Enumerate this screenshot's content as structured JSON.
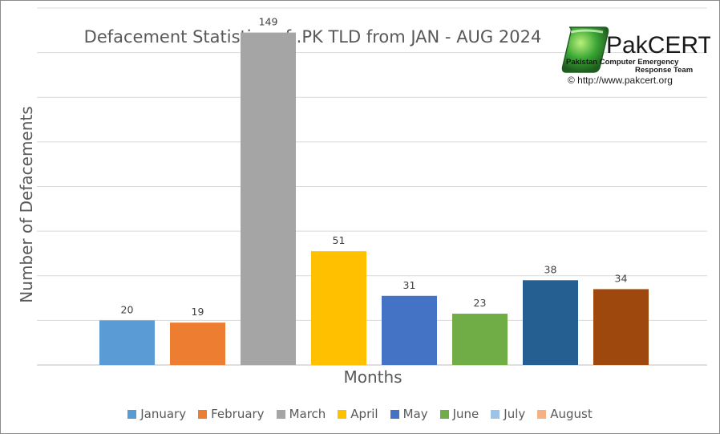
{
  "colors": {
    "grid": "#d9d9d9",
    "axis": "#bfbfbf",
    "text": "#595959",
    "label_text": "#404040",
    "logo_green": "#3aa535",
    "logo_dark": "#1e5c1e"
  },
  "logo": {
    "name": "PakCERT",
    "tagline_line1": "Pakistan Computer Emergency",
    "tagline_line2": "Response Team",
    "url": "© http://www.pakcert.org"
  },
  "chart_data": {
    "type": "bar",
    "title": "Defacement Statistics of .PK TLD from JAN - AUG 2024",
    "xlabel": "Months",
    "ylabel": "Number of Defacements",
    "ylim": [
      0,
      160
    ],
    "grid": true,
    "legend_position": "bottom",
    "categories": [
      "January",
      "February",
      "March",
      "April",
      "May",
      "June",
      "July",
      "August"
    ],
    "values": [
      20,
      19,
      149,
      51,
      31,
      23,
      38,
      34
    ],
    "colors": [
      "#5b9bd5",
      "#ed7d31",
      "#a5a5a5",
      "#ffc000",
      "#4472c4",
      "#70ad47",
      "#255e91",
      "#9e480e"
    ],
    "legend_colors": [
      "#5b9bd5",
      "#ed7d31",
      "#a5a5a5",
      "#ffc000",
      "#4472c4",
      "#70ad47",
      "#9dc3e6",
      "#f4b183"
    ]
  }
}
